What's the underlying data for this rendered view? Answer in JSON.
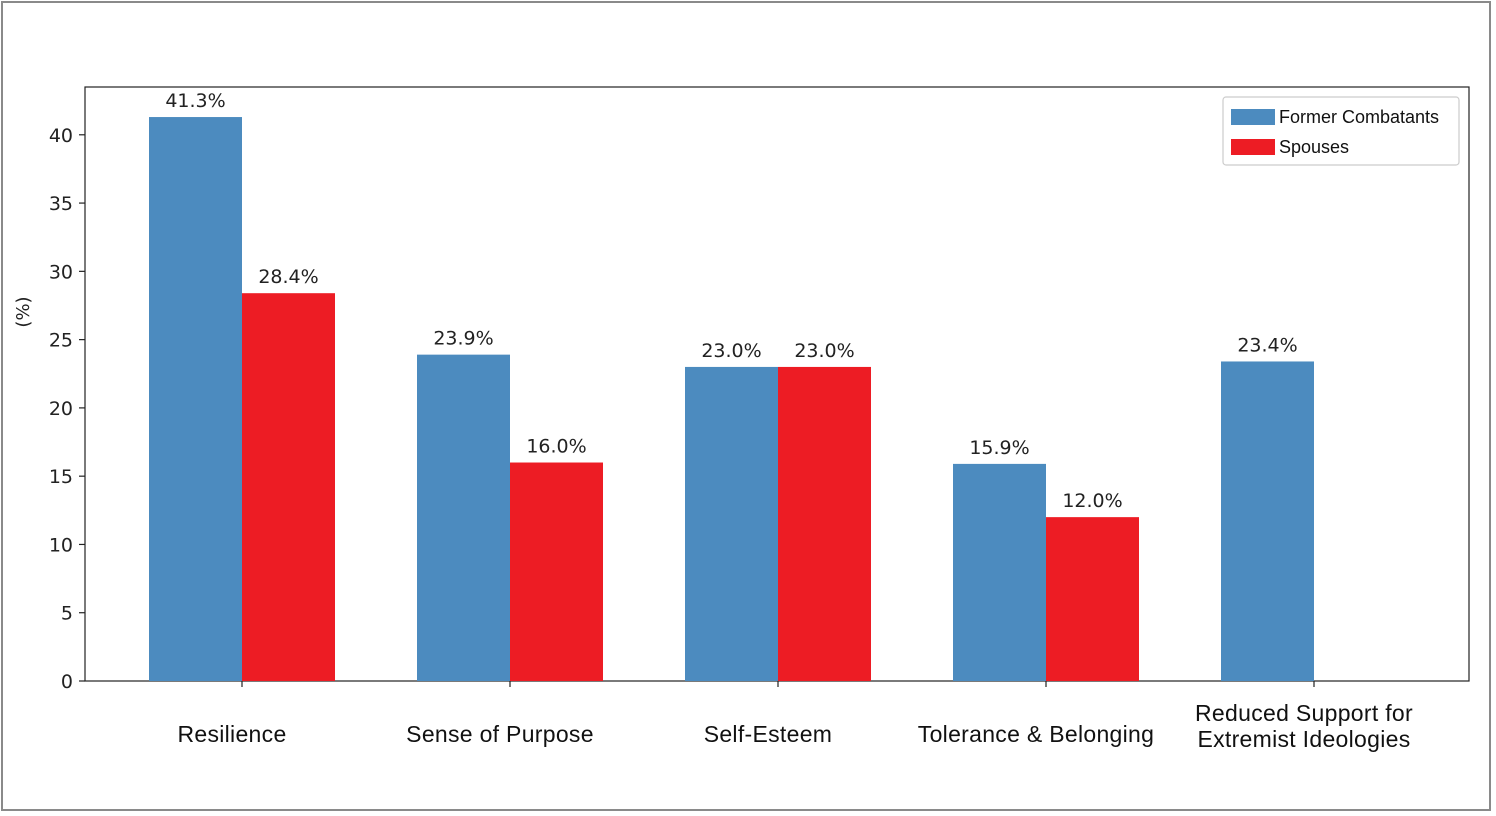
{
  "chart_data": {
    "type": "bar",
    "categories": [
      [
        "Resilience"
      ],
      [
        "Sense of Purpose"
      ],
      [
        "Self-Esteem"
      ],
      [
        "Tolerance & Belonging"
      ],
      [
        "Reduced Support for",
        "Extremist Ideologies"
      ]
    ],
    "series": [
      {
        "name": "Former Combatants",
        "color": "#4c8bbf",
        "values": [
          41.3,
          23.9,
          23.0,
          15.9,
          23.4
        ],
        "labels": [
          "41.3%",
          "23.9%",
          "23.0%",
          "15.9%",
          "23.4%"
        ]
      },
      {
        "name": "Spouses",
        "color": "#ed1c24",
        "values": [
          28.4,
          16.0,
          23.0,
          12.0,
          null
        ],
        "labels": [
          "28.4%",
          "16.0%",
          "23.0%",
          "12.0%",
          null
        ]
      }
    ],
    "ylabel": "(%)",
    "ylim": [
      0,
      43.5
    ],
    "yticks": [
      0,
      5,
      10,
      15,
      20,
      25,
      30,
      35,
      40
    ],
    "grid": false,
    "legend_position": "top-right"
  }
}
